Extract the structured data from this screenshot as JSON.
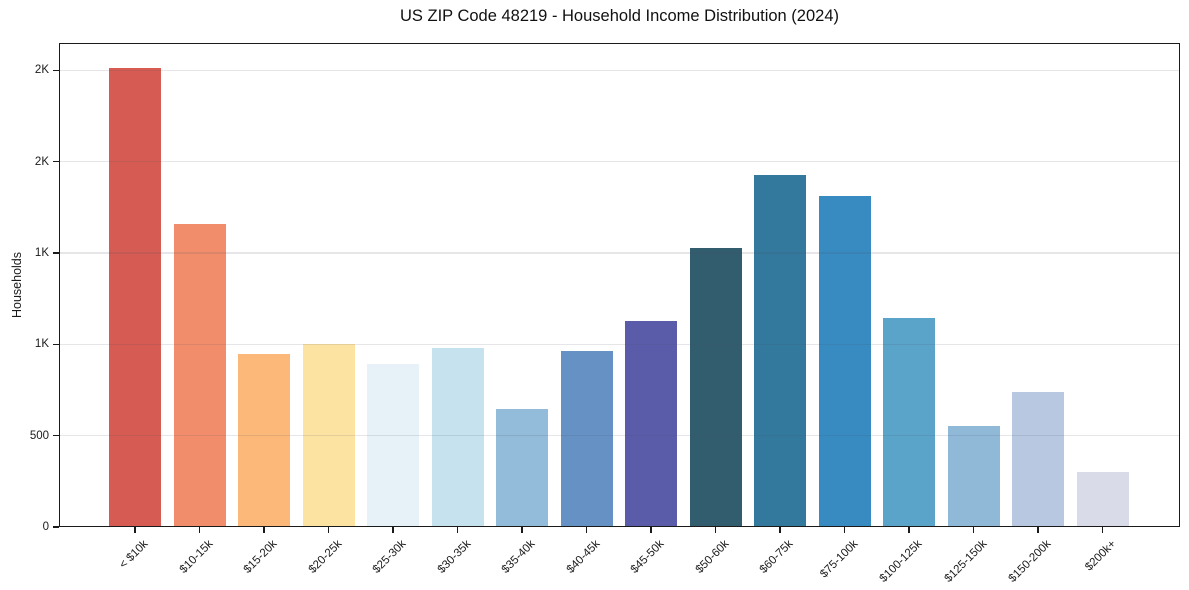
{
  "chart_data": {
    "type": "bar",
    "title": "US ZIP Code 48219 - Household Income Distribution (2024)",
    "xlabel": "",
    "ylabel": "Households",
    "ylim": [
      0,
      2650
    ],
    "grid": "horizontal-light-over-bars",
    "legend": "none",
    "frame": "full-box",
    "categories": [
      "< $10k",
      "$10-15k",
      "$15-20k",
      "$20-25k",
      "$25-30k",
      "$30-35k",
      "$35-40k",
      "$40-45k",
      "$45-50k",
      "$50-60k",
      "$60-75k",
      "$75-100k",
      "$100-125k",
      "$125-150k",
      "$150-200k",
      "$200k+"
    ],
    "values": [
      2515,
      1660,
      950,
      1000,
      895,
      980,
      645,
      965,
      1130,
      1530,
      1930,
      1810,
      1145,
      555,
      740,
      300
    ],
    "bar_colors": [
      "#d65b53",
      "#f28d6b",
      "#fbb878",
      "#fde3a2",
      "#e6f2f8",
      "#c5e2ee",
      "#92bcd9",
      "#6691c5",
      "#5a5caa",
      "#325d6f",
      "#33799d",
      "#378bc1",
      "#5ba4c9",
      "#90b9d8",
      "#b7c8e0",
      "#d9dbe9"
    ],
    "yticks": [
      {
        "value": 0,
        "label": "0"
      },
      {
        "value": 500,
        "label": "500"
      },
      {
        "value": 1000,
        "label": "1K"
      },
      {
        "value": 1500,
        "label": "1K"
      },
      {
        "value": 2000,
        "label": "2K"
      },
      {
        "value": 2500,
        "label": "2K"
      }
    ],
    "colors": {
      "spine": "#1a1a1a",
      "text": "#1a1a1a",
      "background": "#ffffff"
    }
  }
}
